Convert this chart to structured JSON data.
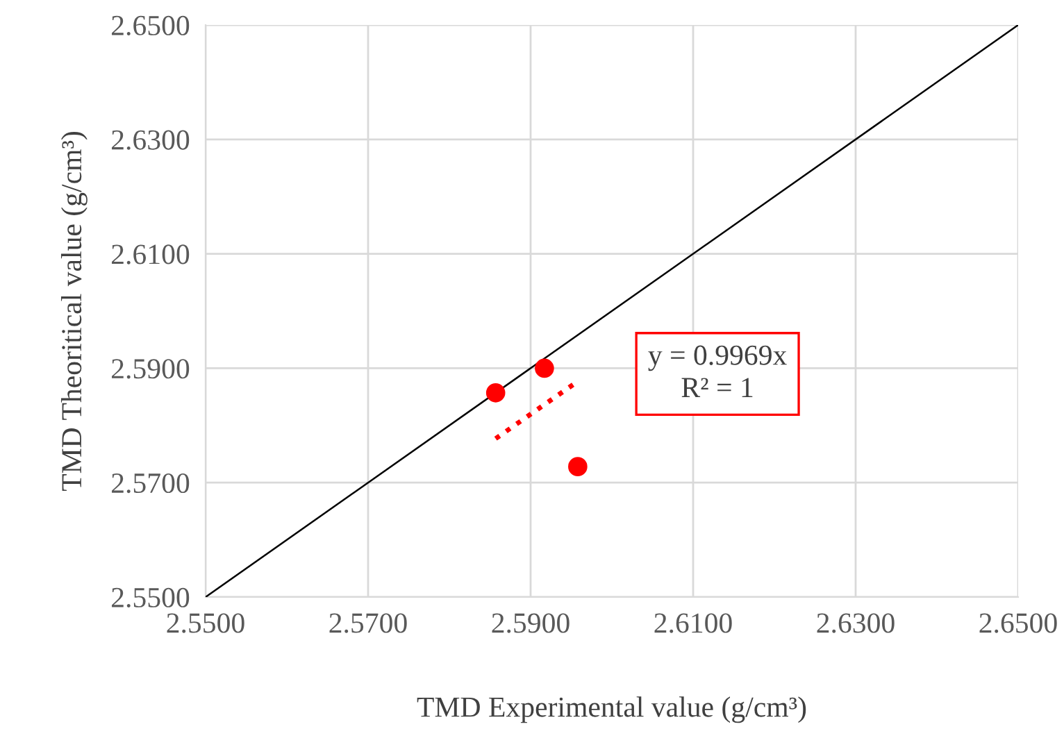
{
  "chart_data": {
    "type": "scatter",
    "xlabel": "TMD Experimental value (g/cm³)",
    "ylabel": "TMD Theoritical value (g/cm³)",
    "xlim": [
      2.55,
      2.65
    ],
    "ylim": [
      2.55,
      2.65
    ],
    "xticks": [
      {
        "value": 2.55,
        "label": "2.5500"
      },
      {
        "value": 2.57,
        "label": "2.5700"
      },
      {
        "value": 2.59,
        "label": "2.5900"
      },
      {
        "value": 2.61,
        "label": "2.6100"
      },
      {
        "value": 2.63,
        "label": "2.6300"
      },
      {
        "value": 2.65,
        "label": "2.6500"
      }
    ],
    "yticks": [
      {
        "value": 2.55,
        "label": "2.5500"
      },
      {
        "value": 2.57,
        "label": "2.5700"
      },
      {
        "value": 2.59,
        "label": "2.5900"
      },
      {
        "value": 2.61,
        "label": "2.6100"
      },
      {
        "value": 2.63,
        "label": "2.6300"
      },
      {
        "value": 2.65,
        "label": "2.6500"
      }
    ],
    "grid": true,
    "series": [
      {
        "type": "line",
        "color": "#000000",
        "line_style": "solid",
        "marker": "none",
        "x": [
          2.55,
          2.65
        ],
        "values": [
          2.55,
          2.65
        ]
      },
      {
        "type": "line",
        "color": "#ff0000",
        "line_style": "dotted",
        "marker": "none",
        "x": [
          2.5857,
          2.5958
        ],
        "values": [
          2.5777,
          2.5877
        ]
      },
      {
        "color": "#ff0000",
        "marker": "circle",
        "x": [
          2.5857,
          2.5917,
          2.5958
        ],
        "values": [
          2.5857,
          2.59,
          2.5728
        ]
      }
    ],
    "annotations": [
      "y = 0.9969x\nR² = 1"
    ]
  }
}
